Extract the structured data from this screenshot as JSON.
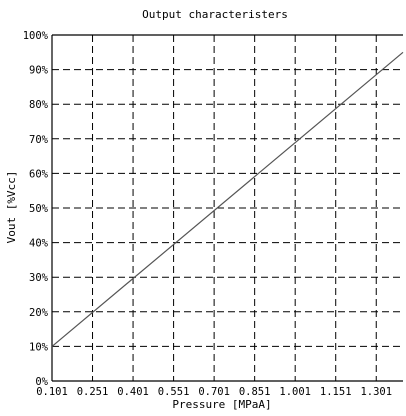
{
  "chart_data": {
    "type": "line",
    "title": "Output characteristers",
    "xlabel": "Pressure [MPaA]",
    "ylabel": "Vout [%Vcc]",
    "x_ticks": [
      "0.101",
      "0.251",
      "0.401",
      "0.551",
      "0.701",
      "0.851",
      "1.001",
      "1.151",
      "1.301"
    ],
    "y_ticks": [
      "0%",
      "10%",
      "20%",
      "30%",
      "40%",
      "50%",
      "60%",
      "70%",
      "80%",
      "90%",
      "100%"
    ],
    "xlim": [
      0.101,
      1.4
    ],
    "ylim": [
      0,
      100
    ],
    "grid": true,
    "grid_style": "dashed",
    "line_color": "#555555",
    "series": [
      {
        "x": [
          0.101,
          1.4
        ],
        "y": [
          10,
          95
        ]
      }
    ]
  }
}
